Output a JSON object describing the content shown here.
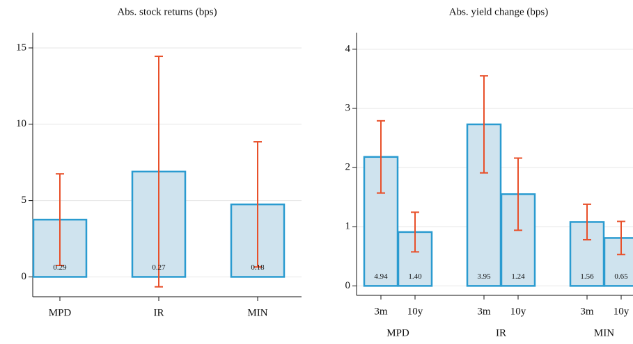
{
  "chart_data": [
    {
      "type": "bar",
      "title": "Abs. stock returns (bps)",
      "categories": [
        "MPD",
        "IR",
        "MIN"
      ],
      "values": [
        3.75,
        6.9,
        4.75
      ],
      "errors": [
        3.0,
        7.55,
        4.1
      ],
      "bar_labels": [
        "0.29",
        "0.27",
        "0.18"
      ],
      "color": "#cfe3ee",
      "edge_color": "#2a9bd0",
      "error_color": "#e8502a",
      "ylim": [
        -1.3,
        16
      ],
      "yticks": [
        0,
        5,
        10,
        15
      ],
      "grid": true
    },
    {
      "type": "grouped-bar",
      "title": "Abs. yield change (bps)",
      "groups": [
        "MPD",
        "IR",
        "MIN"
      ],
      "categories": [
        "3m",
        "10y",
        "3m",
        "10y",
        "3m",
        "10y"
      ],
      "values": [
        2.18,
        0.91,
        2.73,
        1.55,
        1.08,
        0.81
      ],
      "errors": [
        0.61,
        0.335,
        0.82,
        0.61,
        0.3,
        0.28
      ],
      "bar_labels": [
        "4.94",
        "1.40",
        "3.95",
        "1.24",
        "1.56",
        "0.65"
      ],
      "color": "#cfe3ee",
      "edge_color": "#2a9bd0",
      "error_color": "#e8502a",
      "ylim": [
        -0.16,
        4.28
      ],
      "yticks": [
        0,
        1,
        2,
        3,
        4
      ],
      "grid": true
    }
  ]
}
